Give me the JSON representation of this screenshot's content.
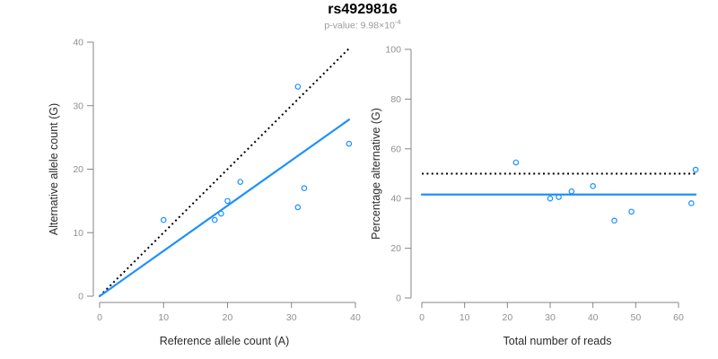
{
  "title": "rs4929816",
  "subtitle": {
    "prefix": "p-value: ",
    "base": "9.98×10",
    "exponent": "-4"
  },
  "colors": {
    "accent_blue": "#1E90FF",
    "dotted_black": "#000000",
    "axis_gray": "#858585",
    "tick_label_gray": "#909090",
    "axis_title_color": "#2b2b2b",
    "title_color": "#000000",
    "subtitle_gray": "#9a9a9a"
  },
  "chart_data": [
    {
      "type": "scatter",
      "name": "allele-counts-scatter",
      "xlabel": "Reference allele count (A)",
      "ylabel": "Alternative allele count (G)",
      "xlim": [
        0,
        40
      ],
      "ylim": [
        0,
        40
      ],
      "xticks": [
        0,
        10,
        20,
        30,
        40
      ],
      "yticks": [
        0,
        10,
        20,
        30,
        40
      ],
      "grid": false,
      "point_color": "#1E90FF",
      "points": [
        [
          10,
          12
        ],
        [
          18,
          12
        ],
        [
          19,
          13
        ],
        [
          20,
          15
        ],
        [
          22,
          18
        ],
        [
          31,
          14
        ],
        [
          31,
          33
        ],
        [
          32,
          17
        ],
        [
          39,
          24
        ]
      ],
      "lines": [
        {
          "name": "identity-line",
          "style": "dotted",
          "color": "#000000",
          "x": [
            0,
            39
          ],
          "y": [
            0,
            39
          ]
        },
        {
          "name": "fit-line",
          "style": "solid",
          "color": "#1E90FF",
          "x": [
            0,
            39
          ],
          "y": [
            0,
            27.8
          ]
        }
      ]
    },
    {
      "type": "scatter",
      "name": "percentage-vs-reads-scatter",
      "xlabel": "Total number of reads",
      "ylabel": "Percentage alternative (G)",
      "xlim": [
        0,
        64
      ],
      "ylim": [
        0,
        100
      ],
      "xticks": [
        0,
        10,
        20,
        30,
        40,
        50,
        60
      ],
      "yticks": [
        0,
        20,
        40,
        60,
        80,
        100
      ],
      "grid": false,
      "point_color": "#1E90FF",
      "points": [
        [
          22,
          54.5
        ],
        [
          30,
          40
        ],
        [
          32,
          40.6
        ],
        [
          35,
          42.9
        ],
        [
          40,
          45
        ],
        [
          45,
          31.1
        ],
        [
          49,
          34.7
        ],
        [
          63,
          38.1
        ],
        [
          64,
          51.6
        ]
      ],
      "lines": [
        {
          "name": "expected-50pct-line",
          "style": "dotted",
          "color": "#000000",
          "x": [
            0,
            64
          ],
          "y": [
            50,
            50
          ]
        },
        {
          "name": "mean-percentage-line",
          "style": "solid",
          "color": "#1E90FF",
          "x": [
            0,
            64
          ],
          "y": [
            41.6,
            41.6
          ]
        }
      ]
    }
  ]
}
